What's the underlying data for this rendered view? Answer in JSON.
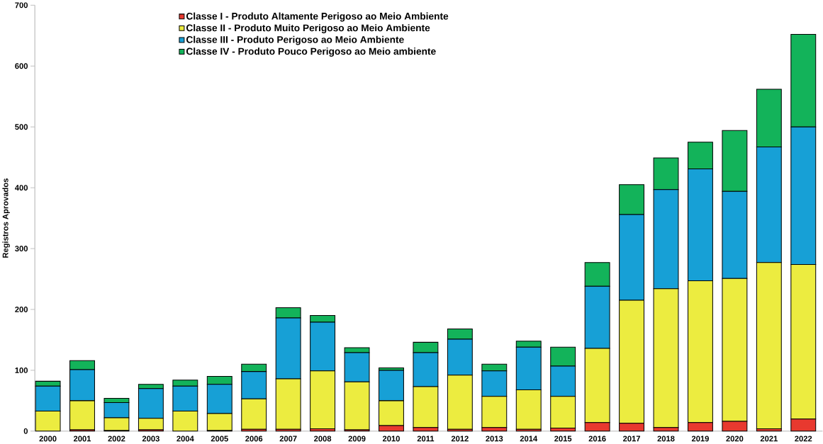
{
  "chart_data": {
    "type": "bar",
    "stacked": true,
    "ylabel": "Registros Aprovados",
    "categories": [
      "2000",
      "2001",
      "2002",
      "2003",
      "2004",
      "2005",
      "2006",
      "2007",
      "2008",
      "2009",
      "2010",
      "2011",
      "2012",
      "2013",
      "2014",
      "2015",
      "2016",
      "2017",
      "2018",
      "2019",
      "2020",
      "2021",
      "2022"
    ],
    "series": [
      {
        "name": "Classe I - Produto Altamente Perigoso ao Meio Ambiente",
        "color": "#e8392f",
        "values": [
          0,
          2,
          1,
          2,
          0,
          1,
          3,
          3,
          4,
          2,
          9,
          6,
          3,
          6,
          3,
          5,
          14,
          13,
          6,
          14,
          16,
          4,
          20
        ]
      },
      {
        "name": "Classe II - Produto Muito Perigoso ao Meio Ambiente",
        "color": "#ecec40",
        "values": [
          33,
          48,
          21,
          19,
          33,
          28,
          50,
          83,
          95,
          79,
          41,
          67,
          89,
          51,
          65,
          52,
          122,
          202,
          228,
          233,
          235,
          273,
          254
        ]
      },
      {
        "name": "Classe III - Produto Perigoso ao Meio Ambiente",
        "color": "#17a0d6",
        "values": [
          41,
          51,
          25,
          49,
          41,
          48,
          45,
          100,
          80,
          48,
          50,
          56,
          59,
          42,
          70,
          50,
          102,
          141,
          163,
          184,
          143,
          190,
          226
        ]
      },
      {
        "name": "Classe IV - Produto Pouco Perigoso ao Meio ambiente",
        "color": "#13b35a",
        "values": [
          8,
          15,
          7,
          7,
          10,
          13,
          12,
          17,
          11,
          8,
          4,
          17,
          17,
          11,
          10,
          31,
          39,
          49,
          52,
          44,
          100,
          95,
          152
        ]
      }
    ],
    "ylim": [
      0,
      700
    ],
    "yticks": [
      0,
      100,
      200,
      300,
      400,
      500,
      600,
      700
    ],
    "grid": false,
    "legend": "top left"
  }
}
